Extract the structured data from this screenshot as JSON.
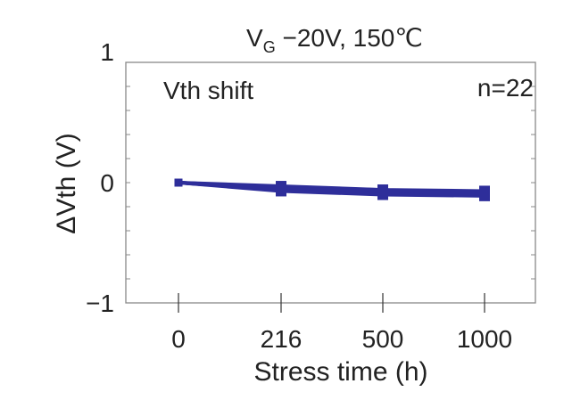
{
  "chart_data": {
    "type": "line",
    "title_main": "V",
    "title_sub": "G",
    "title_rest": " −20V, 150℃",
    "annotation_left": "Vth shift",
    "annotation_right": "n=22",
    "xlabel": "Stress time (h)",
    "ylabel": "ΔVth (V)",
    "categories": [
      "0",
      "216",
      "500",
      "1000"
    ],
    "yticks": [
      {
        "value": 1,
        "label": "1"
      },
      {
        "value": 0,
        "label": "0"
      },
      {
        "value": -1,
        "label": "−1"
      }
    ],
    "ylim": [
      -1,
      1
    ],
    "y_minor_step": 0.2,
    "grid": false,
    "marker": "square",
    "color": "#2e2e9a",
    "series": [
      {
        "values": [
          0,
          -0.03,
          -0.06,
          -0.07
        ]
      },
      {
        "values": [
          0,
          -0.04,
          -0.07,
          -0.08
        ]
      },
      {
        "values": [
          0,
          -0.05,
          -0.07,
          -0.09
        ]
      },
      {
        "values": [
          0,
          -0.05,
          -0.08,
          -0.08
        ]
      },
      {
        "values": [
          0,
          -0.06,
          -0.08,
          -0.1
        ]
      },
      {
        "values": [
          0,
          -0.06,
          -0.09,
          -0.09
        ]
      },
      {
        "values": [
          0,
          -0.07,
          -0.1,
          -0.11
        ]
      },
      {
        "values": [
          0,
          -0.04,
          -0.06,
          -0.1
        ]
      }
    ]
  }
}
